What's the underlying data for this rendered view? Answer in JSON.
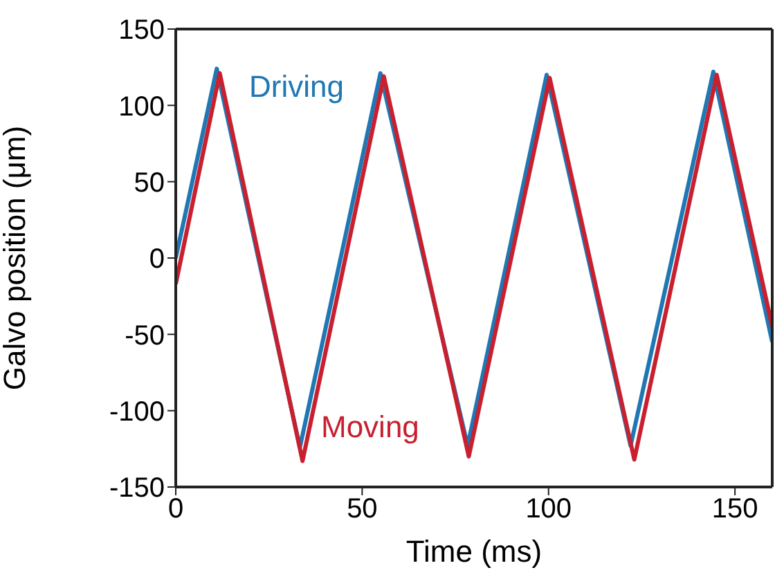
{
  "chart_data": {
    "type": "line",
    "xlabel": "Time (ms)",
    "ylabel": "Galvo position (μm)",
    "xlim": [
      0,
      160
    ],
    "xticks": [
      0,
      50,
      100,
      150
    ],
    "ylim": [
      -150,
      150
    ],
    "yticks": [
      -150,
      -100,
      -50,
      0,
      50,
      100,
      150
    ],
    "grid": false,
    "legend": false,
    "marker": "none",
    "line_style": "solid",
    "series": [
      {
        "name": "Driving",
        "color": "#1f77b4",
        "x": [
          0,
          11,
          33.3,
          54.9,
          78.3,
          99.5,
          122,
          144.2,
          160
        ],
        "values": [
          0,
          124,
          -124,
          121,
          -123,
          120,
          -123,
          122,
          -55
        ]
      },
      {
        "name": "Moving",
        "color": "#c8202f",
        "x": [
          0,
          11.8,
          34,
          55.8,
          78.6,
          100.3,
          123,
          145.1,
          160
        ],
        "values": [
          -17,
          121,
          -133,
          119,
          -130,
          118,
          -132,
          120,
          -45
        ]
      }
    ]
  }
}
